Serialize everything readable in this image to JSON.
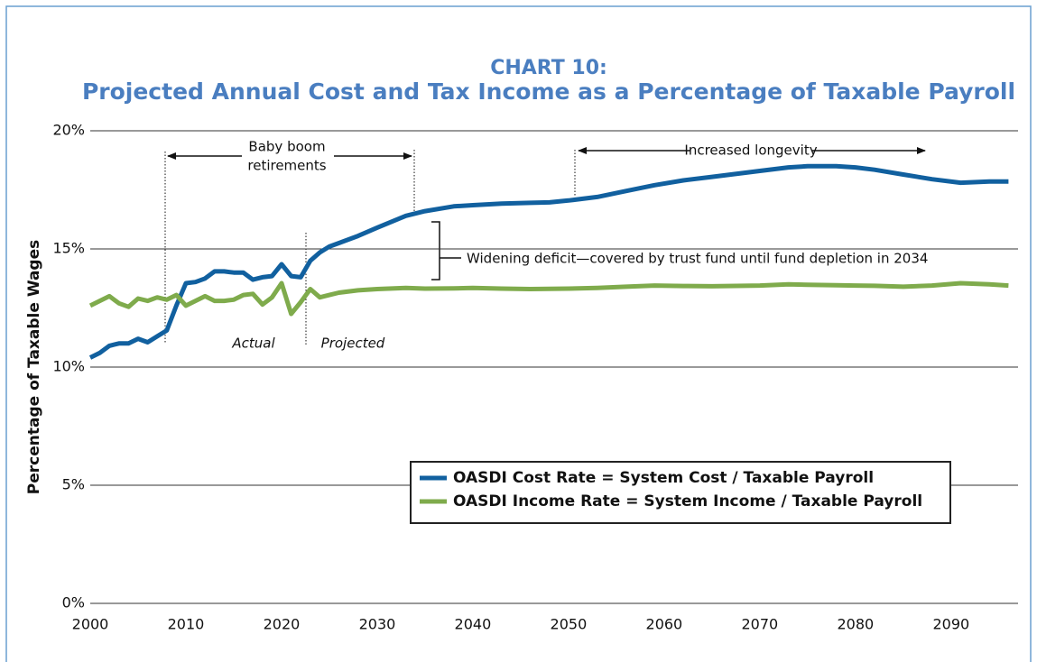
{
  "chart_data": {
    "type": "line",
    "title": "CHART 10:",
    "subtitle": "Projected Annual Cost and Tax Income as a Percentage of Taxable Payroll",
    "y_label": "Percentage of Taxable Wages",
    "annotations": [
      "Baby boom",
      "retirements",
      "Increased longevity",
      "Widening deficit—covered  by trust fund until fund depletion in 2034",
      "Actual",
      "Projected"
    ],
    "x": [
      2000,
      2001,
      2002,
      2003,
      2004,
      2005,
      2006,
      2007,
      2008,
      2009,
      2010,
      2011,
      2012,
      2013,
      2014,
      2015,
      2016,
      2017,
      2018,
      2019,
      2020,
      2021,
      2022,
      2023,
      2024,
      2025,
      2026,
      2028,
      2030,
      2033,
      2035,
      2038,
      2040,
      2043,
      2046,
      2048,
      2050,
      2053,
      2056,
      2059,
      2062,
      2065,
      2070,
      2073,
      2075,
      2078,
      2080,
      2082,
      2085,
      2088,
      2091,
      2094,
      2096
    ],
    "series": [
      {
        "name": "OASDI Cost Rate = System Cost / Taxable Payroll",
        "color": "#11609f",
        "values": [
          10.4,
          10.6,
          10.9,
          11.0,
          11.0,
          11.2,
          11.05,
          11.3,
          11.55,
          12.6,
          13.55,
          13.6,
          13.75,
          14.05,
          14.05,
          14.0,
          14.0,
          13.7,
          13.8,
          13.85,
          14.35,
          13.85,
          13.8,
          14.5,
          14.85,
          15.1,
          15.25,
          15.55,
          15.9,
          16.4,
          16.6,
          16.8,
          16.85,
          16.92,
          16.95,
          16.97,
          17.05,
          17.2,
          17.45,
          17.7,
          17.9,
          18.05,
          18.3,
          18.45,
          18.5,
          18.5,
          18.45,
          18.35,
          18.15,
          17.95,
          17.8,
          17.85,
          17.85
        ]
      },
      {
        "name": "OASDI Income Rate = System Income / Taxable Payroll",
        "color": "#7fab4c",
        "values": [
          12.6,
          12.8,
          13.0,
          12.7,
          12.55,
          12.9,
          12.8,
          12.95,
          12.85,
          13.05,
          12.6,
          12.8,
          13.0,
          12.8,
          12.8,
          12.85,
          13.05,
          13.1,
          12.65,
          12.95,
          13.55,
          12.25,
          12.75,
          13.3,
          12.95,
          13.05,
          13.15,
          13.25,
          13.3,
          13.35,
          13.32,
          13.33,
          13.35,
          13.32,
          13.3,
          13.31,
          13.32,
          13.35,
          13.4,
          13.45,
          13.43,
          13.42,
          13.45,
          13.5,
          13.48,
          13.46,
          13.45,
          13.44,
          13.4,
          13.45,
          13.55,
          13.5,
          13.45
        ]
      }
    ],
    "xlim": [
      2000,
      2097
    ],
    "xticks": [
      2000,
      2010,
      2020,
      2030,
      2040,
      2050,
      2060,
      2070,
      2080,
      2090
    ],
    "ylim": [
      0,
      20
    ],
    "yticks": [
      {
        "value": 0,
        "label": "0%"
      },
      {
        "value": 5,
        "label": "5%"
      },
      {
        "value": 10,
        "label": "10%"
      },
      {
        "value": 15,
        "label": "15%"
      },
      {
        "value": 20,
        "label": "20%"
      }
    ],
    "grid": true
  }
}
